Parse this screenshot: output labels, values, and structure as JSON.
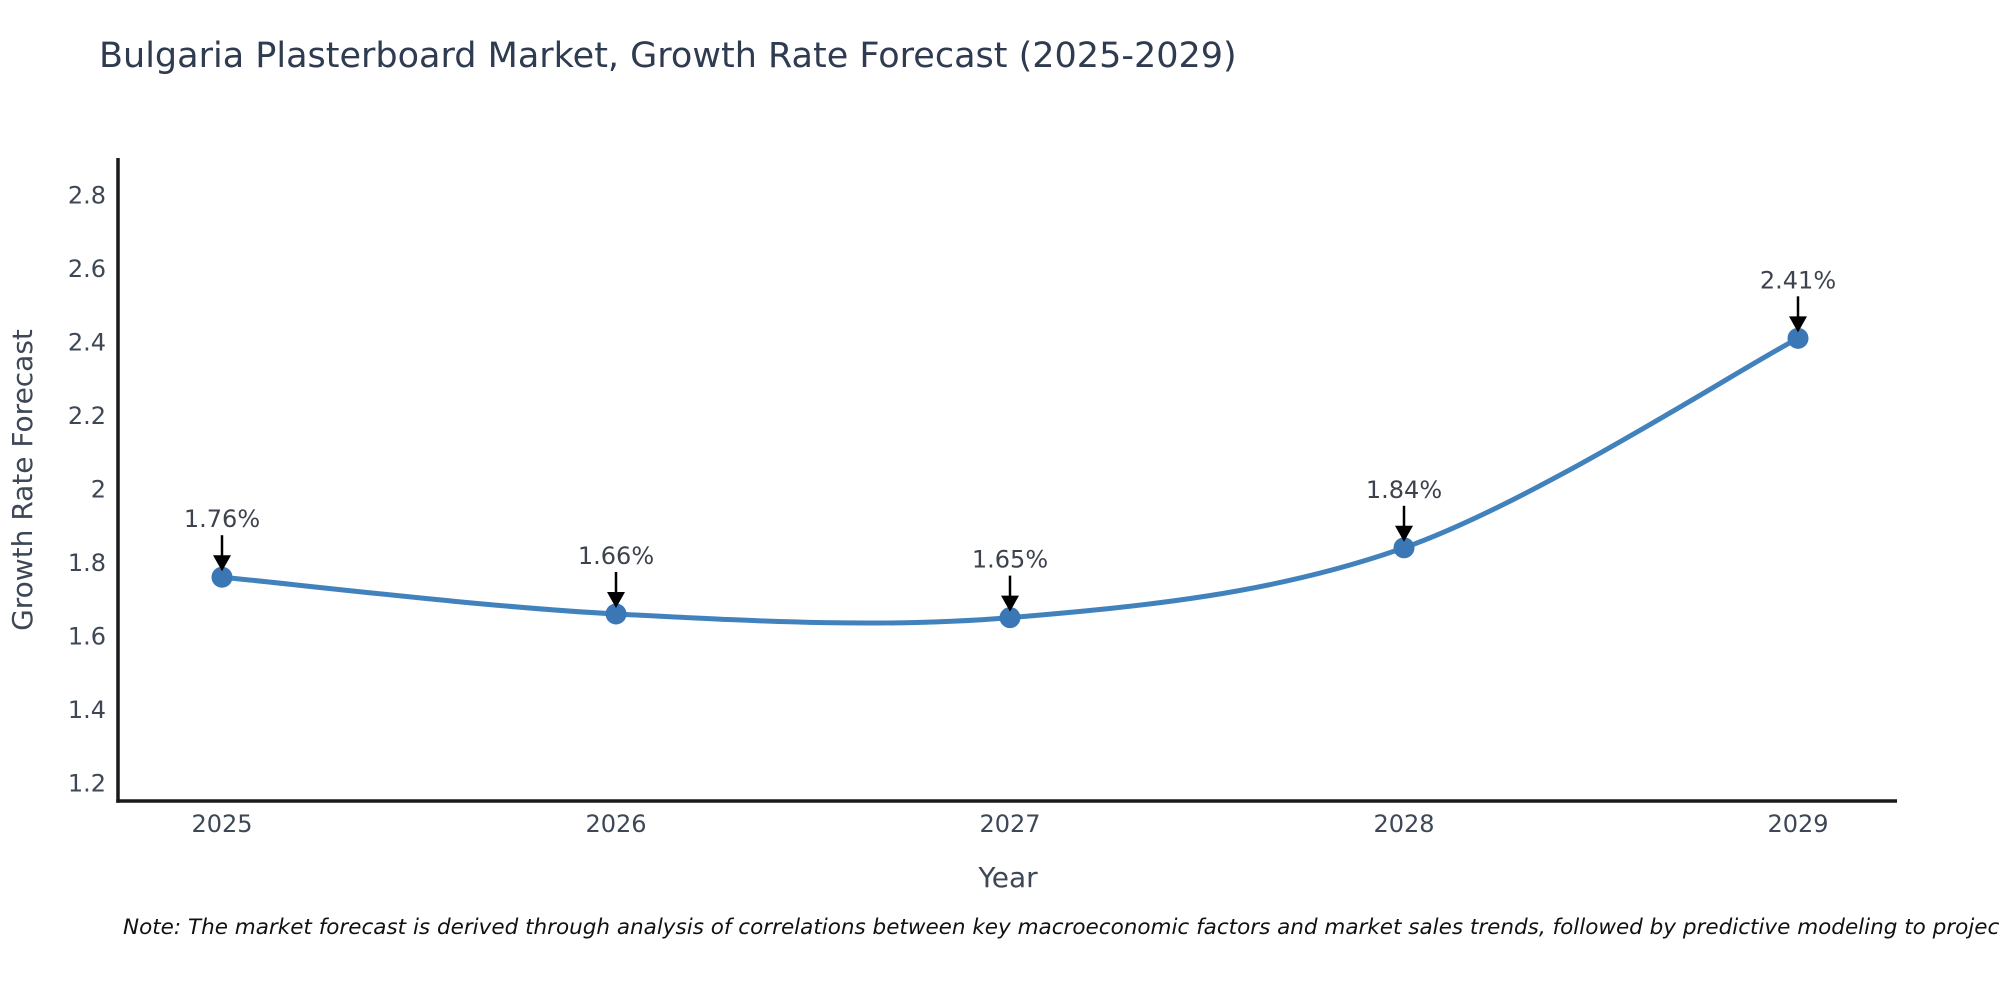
{
  "title": "Bulgaria Plasterboard Market, Growth Rate Forecast (2025-2029)",
  "note": "Note: The market forecast is derived through analysis of correlations between key macroeconomic factors and market sales trends, followed by predictive modeling to project future sales",
  "chart_data": {
    "type": "line",
    "x": [
      2025,
      2026,
      2027,
      2028,
      2029
    ],
    "values": [
      1.76,
      1.66,
      1.65,
      1.84,
      2.41
    ],
    "point_labels": [
      "1.76%",
      "1.66%",
      "1.65%",
      "1.84%",
      "2.41%"
    ],
    "title": "Bulgaria Plasterboard Market, Growth Rate Forecast (2025-2029)",
    "xlabel": "Year",
    "ylabel": "Growth Rate Forecast",
    "yticks": [
      1.2,
      1.4,
      1.6,
      1.8,
      2,
      2.2,
      2.4,
      2.6,
      2.8
    ],
    "ylim": [
      1.15,
      2.9
    ],
    "grid": false,
    "legend": null,
    "line_color": "#4282bc",
    "marker_color": "#3a77b4",
    "axis_color": "#1a1a1a",
    "annotation_arrow_color": "#000000"
  }
}
